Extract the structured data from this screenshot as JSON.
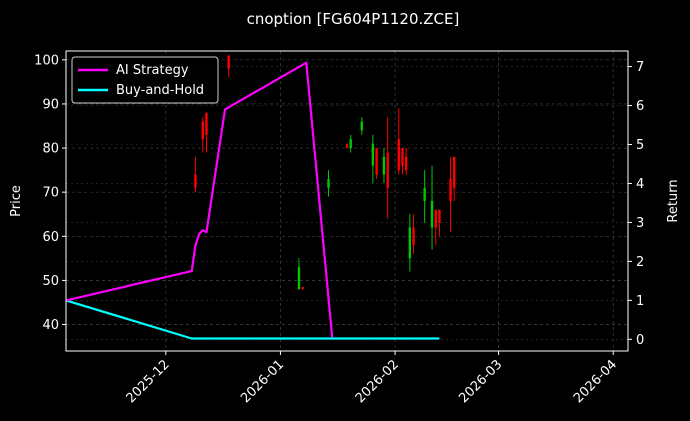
{
  "chart_data": {
    "type": "candlestick+line",
    "title": "cnoption [FG604P1120.ZCE]",
    "ylabel_left": "Price",
    "ylabel_right": "Return",
    "ylim_left": [
      34,
      102
    ],
    "ylim_right": [
      -0.3,
      7.4
    ],
    "xlim": [
      "2025-11-04",
      "2026-04-05"
    ],
    "x_ticks": [
      "2025-12",
      "2026-01",
      "2026-02",
      "2026-03",
      "2026-04"
    ],
    "y_ticks_left": [
      40,
      50,
      60,
      70,
      80,
      90,
      100
    ],
    "y_ticks_right": [
      0,
      1,
      2,
      3,
      4,
      5,
      6,
      7
    ],
    "grid": true,
    "legend_position": "top-left",
    "colors": {
      "background": "#000000",
      "up": "#00c800",
      "down": "#ff0000",
      "strategy": "#ff00ff",
      "buyhold": "#00ffff",
      "grid": "#444444"
    },
    "series": [
      {
        "name": "AI Strategy",
        "points": [
          [
            "2025-11-04",
            1.0
          ],
          [
            "2025-12-08",
            1.75
          ],
          [
            "2025-12-09",
            2.4
          ],
          [
            "2025-12-10",
            2.7
          ],
          [
            "2025-12-11",
            2.8
          ],
          [
            "2025-12-12",
            2.75
          ],
          [
            "2025-12-17",
            5.9
          ],
          [
            "2026-01-08",
            7.1
          ],
          [
            "2026-01-15",
            0.05
          ]
        ]
      },
      {
        "name": "Buy-and-Hold",
        "points": [
          [
            "2025-11-04",
            1.0
          ],
          [
            "2025-12-08",
            0.02
          ],
          [
            "2026-02-13",
            0.02
          ]
        ]
      }
    ],
    "candles": [
      {
        "date": "2025-12-09",
        "open": 74,
        "close": 71,
        "high": 78,
        "low": 70
      },
      {
        "date": "2025-12-11",
        "open": 86,
        "close": 82,
        "high": 87,
        "low": 79
      },
      {
        "date": "2025-12-12",
        "open": 88,
        "close": 83,
        "high": 88,
        "low": 79
      },
      {
        "date": "2025-12-18",
        "open": 101,
        "close": 98,
        "high": 101,
        "low": 96
      },
      {
        "date": "2026-01-06",
        "open": 48,
        "close": 53,
        "high": 55,
        "low": 48
      },
      {
        "date": "2026-01-07",
        "open": 48.5,
        "close": 48,
        "high": 48.5,
        "low": 48
      },
      {
        "date": "2026-01-14",
        "open": 71,
        "close": 73,
        "high": 75,
        "low": 69
      },
      {
        "date": "2026-01-19",
        "open": 81,
        "close": 80,
        "high": 81,
        "low": 80
      },
      {
        "date": "2026-01-20",
        "open": 80,
        "close": 82,
        "high": 83,
        "low": 79
      },
      {
        "date": "2026-01-23",
        "open": 84,
        "close": 86,
        "high": 87,
        "low": 83
      },
      {
        "date": "2026-01-26",
        "open": 76,
        "close": 81,
        "high": 83,
        "low": 72
      },
      {
        "date": "2026-01-27",
        "open": 80,
        "close": 74,
        "high": 80,
        "low": 73
      },
      {
        "date": "2026-01-29",
        "open": 74,
        "close": 78,
        "high": 80,
        "low": 72
      },
      {
        "date": "2026-01-30",
        "open": 79,
        "close": 71,
        "high": 87,
        "low": 64
      },
      {
        "date": "2026-02-02",
        "open": 82,
        "close": 75,
        "high": 89,
        "low": 74
      },
      {
        "date": "2026-02-03",
        "open": 80,
        "close": 76,
        "high": 80,
        "low": 74
      },
      {
        "date": "2026-02-04",
        "open": 78,
        "close": 75,
        "high": 80,
        "low": 74
      },
      {
        "date": "2026-02-05",
        "open": 55,
        "close": 62,
        "high": 65,
        "low": 52
      },
      {
        "date": "2026-02-06",
        "open": 62,
        "close": 58,
        "high": 65,
        "low": 56
      },
      {
        "date": "2026-02-09",
        "open": 68,
        "close": 71,
        "high": 75,
        "low": 63
      },
      {
        "date": "2026-02-11",
        "open": 62,
        "close": 68,
        "high": 76,
        "low": 57
      },
      {
        "date": "2026-02-12",
        "open": 66,
        "close": 62,
        "high": 66,
        "low": 58
      },
      {
        "date": "2026-02-13",
        "open": 66,
        "close": 63,
        "high": 66,
        "low": 60
      },
      {
        "date": "2026-02-16",
        "open": 73,
        "close": 68,
        "high": 78,
        "low": 61
      },
      {
        "date": "2026-02-17",
        "open": 78,
        "close": 71,
        "high": 78,
        "low": 68
      }
    ]
  }
}
